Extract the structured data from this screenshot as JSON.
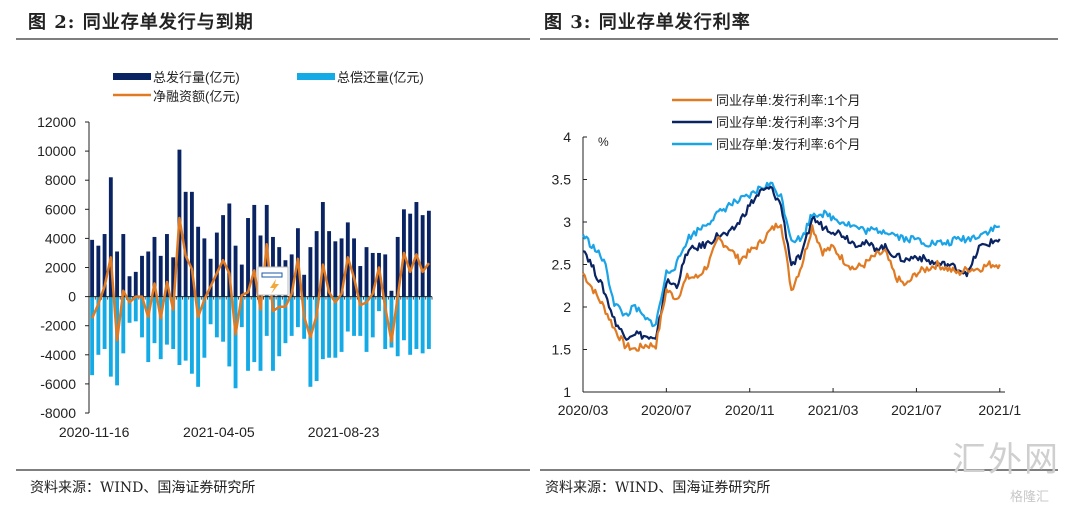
{
  "figures": {
    "left": {
      "title": "图 2: 同业存单发行与到期",
      "source": "资料来源：WIND、国海证券研究所"
    },
    "right": {
      "title": "图 3: 同业存单发行利率",
      "source": "资料来源：WIND、国海证券研究所"
    }
  },
  "watermark": {
    "text": "汇外网",
    "subtext": "格隆汇"
  },
  "chart_data": [
    {
      "type": "bar",
      "title": "同业存单发行与到期",
      "xlabel": "",
      "ylabel": "",
      "ylim": [
        -8000,
        12000
      ],
      "yticks": [
        "12000",
        "10000",
        "8000",
        "6000",
        "4000",
        "2000",
        "0",
        "-2000",
        "-4000",
        "-6000",
        "-8000"
      ],
      "xtick_labels": [
        "2020-11-16",
        "2021-04-05",
        "2021-08-23"
      ],
      "xtick_index": [
        0,
        20,
        40
      ],
      "legend_position": "top",
      "colors": {
        "issue": "#0a2463",
        "repay": "#13aae6",
        "net": "#e07b24"
      },
      "series": [
        {
          "name": "总发行量(亿元)",
          "kind": "bar",
          "values": [
            3900,
            3500,
            4300,
            8200,
            3100,
            4300,
            1400,
            1700,
            2800,
            3100,
            4100,
            2800,
            4300,
            2700,
            10100,
            7200,
            7200,
            4800,
            4000,
            2600,
            4400,
            5600,
            6400,
            3500,
            2200,
            5400,
            6300,
            4200,
            6300,
            4100,
            3400,
            2500,
            2900,
            4700,
            1500,
            3400,
            4500,
            6500,
            4500,
            3800,
            4000,
            5100,
            4000,
            2100,
            3400,
            3000,
            3000,
            2900,
            400,
            4100,
            6000,
            5700,
            6500,
            5600,
            5900
          ]
        },
        {
          "name": "总偿还量(亿元)",
          "kind": "bar",
          "values": [
            -5400,
            -4000,
            -3600,
            -5500,
            -6100,
            -3900,
            -1800,
            -1700,
            -2800,
            -4500,
            -3200,
            -4300,
            -3300,
            -3600,
            -4700,
            -4400,
            -5300,
            -6200,
            -4200,
            -1900,
            -2800,
            -3100,
            -4800,
            -6300,
            -2100,
            -5100,
            -4500,
            -5100,
            -2700,
            -5100,
            -4100,
            -3200,
            -2700,
            -2100,
            -2900,
            -6200,
            -5800,
            -4300,
            -4200,
            -4200,
            -3800,
            -2400,
            -2700,
            -2700,
            -3800,
            -2800,
            -1000,
            -3600,
            -3500,
            -4100,
            -3000,
            -4000,
            -3600,
            -3900,
            -3600
          ]
        },
        {
          "name": "净融资额(亿元)",
          "kind": "line",
          "values": [
            -1500,
            -500,
            700,
            2700,
            -3000,
            400,
            -400,
            0,
            0,
            -1400,
            900,
            -1500,
            1000,
            -900,
            5400,
            2800,
            1900,
            -1400,
            -200,
            700,
            1600,
            2500,
            1600,
            -2600,
            100,
            300,
            1800,
            -900,
            3600,
            -1000,
            -700,
            -700,
            200,
            2600,
            -1400,
            -2800,
            -1300,
            2200,
            300,
            -400,
            200,
            2700,
            1300,
            -600,
            -400,
            200,
            2000,
            -700,
            -3100,
            0,
            3000,
            1700,
            2900,
            1700,
            2300
          ]
        }
      ]
    },
    {
      "type": "line",
      "title": "同业存单发行利率",
      "ylabel": "%",
      "ylim": [
        1,
        4
      ],
      "yticks": [
        "4",
        "3.5",
        "3",
        "2.5",
        "2",
        "1.5",
        "1"
      ],
      "xtick_labels": [
        "2020/03",
        "2020/07",
        "2020/11",
        "2021/03",
        "2021/07",
        "2021/1"
      ],
      "xlim_periods": 41,
      "xtick_index": [
        0,
        8,
        16,
        24,
        32,
        40
      ],
      "legend_position": "top",
      "series": [
        {
          "name": "同业存单:发行利率:1个月",
          "color": "#e07b24",
          "values": [
            2.4,
            2.2,
            2.0,
            1.75,
            1.55,
            1.5,
            1.55,
            1.55,
            2.2,
            2.1,
            2.35,
            2.35,
            2.5,
            2.8,
            2.7,
            2.55,
            2.65,
            2.75,
            2.9,
            3.0,
            2.2,
            2.5,
            2.95,
            2.65,
            2.7,
            2.55,
            2.45,
            2.5,
            2.6,
            2.65,
            2.35,
            2.25,
            2.4,
            2.45,
            2.5,
            2.45,
            2.4,
            2.45,
            2.45,
            2.5,
            2.5
          ]
        },
        {
          "name": "同业存单:发行利率:3个月",
          "color": "#0a2463",
          "values": [
            2.7,
            2.45,
            2.2,
            1.85,
            1.65,
            1.7,
            1.65,
            1.6,
            2.3,
            2.25,
            2.65,
            2.7,
            2.75,
            2.85,
            2.85,
            3.0,
            3.2,
            3.35,
            3.4,
            3.2,
            2.5,
            2.6,
            3.05,
            2.95,
            2.9,
            2.85,
            2.75,
            2.75,
            2.7,
            2.7,
            2.6,
            2.55,
            2.6,
            2.55,
            2.5,
            2.5,
            2.45,
            2.4,
            2.7,
            2.75,
            2.8
          ]
        },
        {
          "name": "同业存单:发行利率:6个月",
          "color": "#1aa3e6",
          "values": [
            2.85,
            2.7,
            2.55,
            2.05,
            1.9,
            2.0,
            1.85,
            1.8,
            2.4,
            2.5,
            2.8,
            2.9,
            3.0,
            3.1,
            3.2,
            3.25,
            3.3,
            3.4,
            3.45,
            3.3,
            2.8,
            2.8,
            3.1,
            3.1,
            3.05,
            3.0,
            2.95,
            2.9,
            2.9,
            2.9,
            2.85,
            2.8,
            2.8,
            2.75,
            2.75,
            2.75,
            2.8,
            2.8,
            2.85,
            2.9,
            2.95
          ]
        }
      ]
    }
  ]
}
